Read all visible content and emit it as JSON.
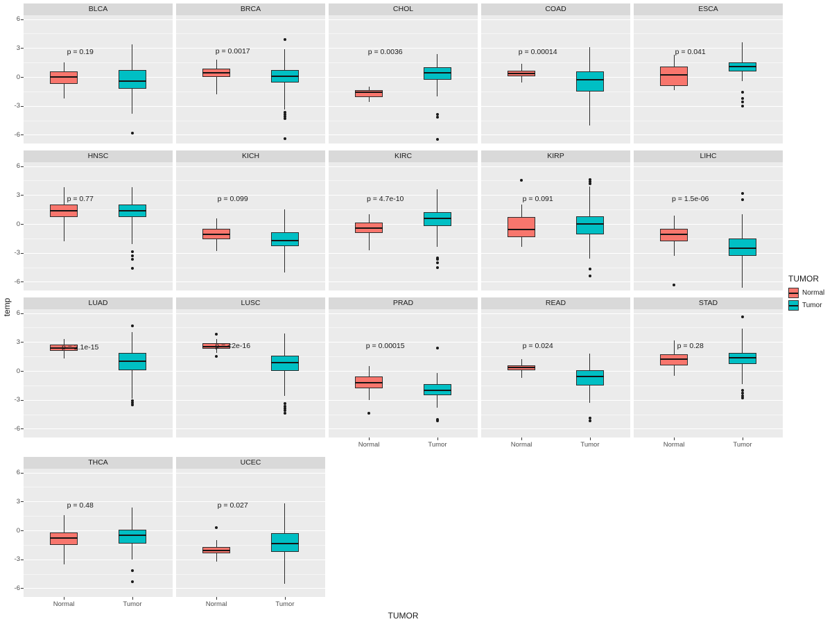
{
  "figure": {
    "y_axis_title": "temp",
    "x_axis_title": "TUMOR",
    "legend": {
      "title": "TUMOR",
      "items": [
        {
          "label": "Normal",
          "color": "#F8766D"
        },
        {
          "label": "Tumor",
          "color": "#00BFC4"
        }
      ]
    },
    "colors": {
      "normal": "#F8766D",
      "tumor": "#00BFC4",
      "panel_bg": "#EBEBEB",
      "strip_bg": "#D9D9D9",
      "grid": "#FFFFFF"
    }
  },
  "chart_data": {
    "type": "boxplot",
    "facet_variable": "cancer type",
    "x_categories": [
      "Normal",
      "Tumor"
    ],
    "ylabel": "temp",
    "xlabel": "TUMOR",
    "ylim": [
      -6.9,
      6.4
    ],
    "y_ticks": [
      -6,
      -3,
      0,
      3,
      6
    ],
    "minor_ticks": [
      -4.5,
      -1.5,
      1.5,
      4.5
    ],
    "grid": "on",
    "legend_position": "right",
    "facets": [
      {
        "name": "BLCA",
        "p_label": "p = 0.19",
        "p_y": 2.5,
        "normal": {
          "low": -2.2,
          "q1": -0.75,
          "median": 0.0,
          "q3": 0.55,
          "high": 1.5,
          "outliers": []
        },
        "tumor": {
          "low": -3.8,
          "q1": -1.2,
          "median": -0.45,
          "q3": 0.7,
          "high": 3.4,
          "outliers": [
            -5.8
          ]
        }
      },
      {
        "name": "BRCA",
        "p_label": "p = 0.0017",
        "p_y": 2.6,
        "normal": {
          "low": -1.8,
          "q1": 0.0,
          "median": 0.45,
          "q3": 0.9,
          "high": 1.8,
          "outliers": []
        },
        "tumor": {
          "low": -3.4,
          "q1": -0.6,
          "median": 0.05,
          "q3": 0.75,
          "high": 2.9,
          "outliers": [
            3.9,
            -3.7,
            -3.9,
            -4.1,
            -4.3,
            -6.4
          ]
        }
      },
      {
        "name": "CHOL",
        "p_label": "p = 0.0036",
        "p_y": 2.5,
        "normal": {
          "low": -2.6,
          "q1": -2.1,
          "median": -1.55,
          "q3": -1.35,
          "high": -1.0,
          "outliers": []
        },
        "tumor": {
          "low": -2.0,
          "q1": -0.3,
          "median": 0.45,
          "q3": 1.0,
          "high": 2.4,
          "outliers": [
            -3.9,
            -4.2,
            -6.5
          ]
        }
      },
      {
        "name": "COAD",
        "p_label": "p = 0.00014",
        "p_y": 2.5,
        "normal": {
          "low": -0.6,
          "q1": 0.05,
          "median": 0.35,
          "q3": 0.65,
          "high": 1.4,
          "outliers": []
        },
        "tumor": {
          "low": -5.0,
          "q1": -1.5,
          "median": -0.3,
          "q3": 0.6,
          "high": 3.1,
          "outliers": []
        }
      },
      {
        "name": "ESCA",
        "p_label": "p = 0.041",
        "p_y": 2.5,
        "normal": {
          "low": -1.4,
          "q1": -0.9,
          "median": 0.2,
          "q3": 1.1,
          "high": 2.3,
          "outliers": []
        },
        "tumor": {
          "low": -0.4,
          "q1": 0.55,
          "median": 1.05,
          "q3": 1.5,
          "high": 3.6,
          "outliers": [
            -1.6,
            -2.2,
            -2.6,
            -3.0
          ]
        }
      },
      {
        "name": "HNSC",
        "p_label": "p = 0.77",
        "p_y": 2.5,
        "normal": {
          "low": -1.8,
          "q1": 0.75,
          "median": 1.4,
          "q3": 2.0,
          "high": 3.8,
          "outliers": []
        },
        "tumor": {
          "low": -2.1,
          "q1": 0.7,
          "median": 1.35,
          "q3": 2.0,
          "high": 3.8,
          "outliers": [
            -2.9,
            -3.3,
            -3.7,
            -4.6
          ]
        }
      },
      {
        "name": "KICH",
        "p_label": "p = 0.099",
        "p_y": 2.5,
        "normal": {
          "low": -2.8,
          "q1": -1.6,
          "median": -1.05,
          "q3": -0.5,
          "high": 0.6,
          "outliers": []
        },
        "tumor": {
          "low": -5.0,
          "q1": -2.3,
          "median": -1.7,
          "q3": -0.85,
          "high": 1.5,
          "outliers": []
        }
      },
      {
        "name": "KIRC",
        "p_label": "p = 4.7e-10",
        "p_y": 2.5,
        "normal": {
          "low": -2.7,
          "q1": -0.9,
          "median": -0.4,
          "q3": 0.15,
          "high": 1.0,
          "outliers": []
        },
        "tumor": {
          "low": -2.4,
          "q1": -0.2,
          "median": 0.55,
          "q3": 1.2,
          "high": 3.6,
          "outliers": [
            -3.5,
            -3.7,
            -4.0,
            -4.5
          ]
        }
      },
      {
        "name": "KIRP",
        "p_label": "p = 0.091",
        "p_y": 2.5,
        "normal": {
          "low": -2.4,
          "q1": -1.4,
          "median": -0.55,
          "q3": 0.7,
          "high": 2.0,
          "outliers": [
            4.5
          ]
        },
        "tumor": {
          "low": -3.6,
          "q1": -1.1,
          "median": 0.0,
          "q3": 0.8,
          "high": 3.9,
          "outliers": [
            4.2,
            4.4,
            4.6,
            -4.7,
            -5.4
          ]
        }
      },
      {
        "name": "LIHC",
        "p_label": "p = 1.5e-06",
        "p_y": 2.5,
        "normal": {
          "low": -3.3,
          "q1": -1.8,
          "median": -1.1,
          "q3": -0.5,
          "high": 0.9,
          "outliers": [
            -6.3
          ]
        },
        "tumor": {
          "low": -6.6,
          "q1": -3.3,
          "median": -2.5,
          "q3": -1.5,
          "high": 1.0,
          "outliers": [
            3.2,
            2.5
          ]
        }
      },
      {
        "name": "LUAD",
        "p_label": "p = 2.1e-15",
        "p_y": 2.4,
        "normal": {
          "low": 1.3,
          "q1": 2.1,
          "median": 2.4,
          "q3": 2.7,
          "high": 3.3,
          "outliers": []
        },
        "tumor": {
          "low": -2.9,
          "q1": 0.1,
          "median": 1.0,
          "q3": 1.9,
          "high": 4.0,
          "outliers": [
            4.7,
            -3.1,
            -3.3,
            -3.5
          ]
        }
      },
      {
        "name": "LUSC",
        "p_label": "p = <2e-16",
        "p_y": 2.5,
        "normal": {
          "low": 1.9,
          "q1": 2.3,
          "median": 2.55,
          "q3": 2.85,
          "high": 3.3,
          "outliers": [
            3.8,
            1.5
          ]
        },
        "tumor": {
          "low": -2.6,
          "q1": 0.0,
          "median": 0.85,
          "q3": 1.6,
          "high": 3.9,
          "outliers": [
            -3.4,
            -3.7,
            -3.9,
            -4.1,
            -4.4
          ]
        }
      },
      {
        "name": "PRAD",
        "p_label": "p = 0.00015",
        "p_y": 2.5,
        "normal": {
          "low": -3.0,
          "q1": -1.8,
          "median": -1.2,
          "q3": -0.6,
          "high": 0.5,
          "outliers": [
            -4.4
          ]
        },
        "tumor": {
          "low": -3.8,
          "q1": -2.5,
          "median": -2.0,
          "q3": -1.4,
          "high": -0.2,
          "outliers": [
            2.4,
            -5.0,
            -5.2
          ]
        }
      },
      {
        "name": "READ",
        "p_label": "p = 0.024",
        "p_y": 2.5,
        "normal": {
          "low": -0.7,
          "q1": 0.1,
          "median": 0.35,
          "q3": 0.6,
          "high": 1.2,
          "outliers": []
        },
        "tumor": {
          "low": -3.3,
          "q1": -1.5,
          "median": -0.6,
          "q3": 0.1,
          "high": 1.8,
          "outliers": [
            -4.9,
            -5.2
          ]
        }
      },
      {
        "name": "STAD",
        "p_label": "p = 0.28",
        "p_y": 2.5,
        "normal": {
          "low": -0.5,
          "q1": 0.6,
          "median": 1.2,
          "q3": 1.75,
          "high": 3.2,
          "outliers": []
        },
        "tumor": {
          "low": -1.4,
          "q1": 0.7,
          "median": 1.35,
          "q3": 1.9,
          "high": 4.4,
          "outliers": [
            5.6,
            -2.0,
            -2.3,
            -2.6,
            -2.8
          ]
        }
      },
      {
        "name": "THCA",
        "p_label": "p = 0.48",
        "p_y": 2.5,
        "normal": {
          "low": -3.5,
          "q1": -1.5,
          "median": -0.8,
          "q3": -0.2,
          "high": 1.6,
          "outliers": []
        },
        "tumor": {
          "low": -3.0,
          "q1": -1.4,
          "median": -0.5,
          "q3": 0.1,
          "high": 2.4,
          "outliers": [
            -4.2,
            -5.3
          ]
        }
      },
      {
        "name": "UCEC",
        "p_label": "p = 0.027",
        "p_y": 2.5,
        "normal": {
          "low": -3.2,
          "q1": -2.4,
          "median": -2.1,
          "q3": -1.7,
          "high": -1.0,
          "outliers": [
            0.3
          ]
        },
        "tumor": {
          "low": -5.5,
          "q1": -2.2,
          "median": -1.4,
          "q3": -0.3,
          "high": 2.8,
          "outliers": []
        }
      }
    ]
  }
}
